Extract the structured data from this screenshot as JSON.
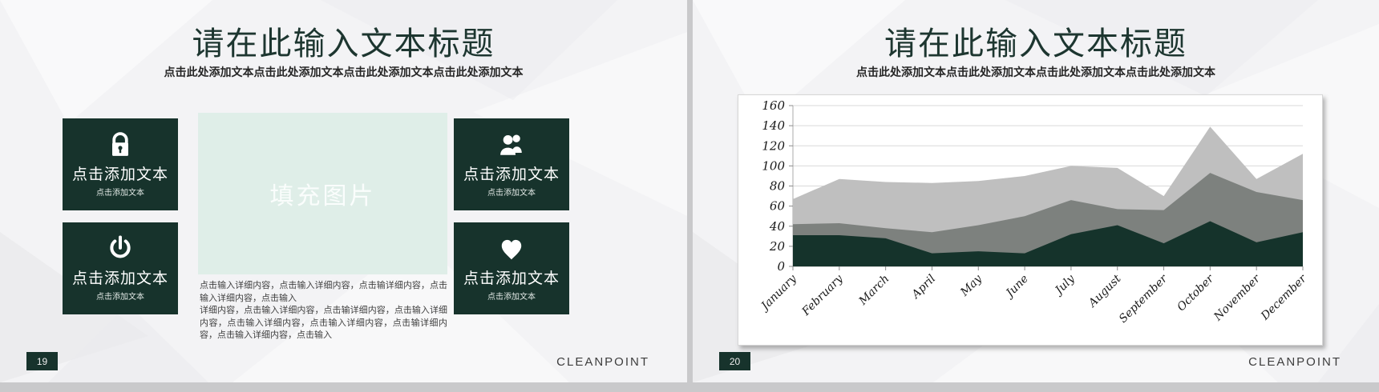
{
  "left_slide": {
    "title": "请在此输入文本标题",
    "subtitle": "点击此处添加文本点击此处添加文本点击此处添加文本点击此处添加文本",
    "boxes": [
      {
        "icon": "lock-icon",
        "label": "点击添加文本",
        "sublabel": "点击添加文本"
      },
      {
        "icon": "users-icon",
        "label": "点击添加文本",
        "sublabel": "点击添加文本"
      },
      {
        "icon": "power-icon",
        "label": "点击添加文本",
        "sublabel": "点击添加文本"
      },
      {
        "icon": "heart-icon",
        "label": "点击添加文本",
        "sublabel": "点击添加文本"
      }
    ],
    "image_placeholder": "填充图片",
    "detail_paragraphs": [
      "点击输入详细内容，点击输入详细内容，点击输详细内容，点击输入详细内容，点击输入",
      "详细内容，点击输入详细内容，点击输详细内容，点击输入详细内容，点击输入详细内容，点击输入详细内容，点击输详细内容，点击输入详细内容，点击输入"
    ],
    "page_number": "19",
    "brand": "CLEANPOINT"
  },
  "right_slide": {
    "title": "请在此输入文本标题",
    "subtitle": "点击此处添加文本点击此处添加文本点击此处添加文本点击此处添加文本",
    "page_number": "20",
    "brand": "CLEANPOINT"
  },
  "chart_data": {
    "type": "area",
    "overlapping": true,
    "title": "",
    "xlabel": "",
    "ylabel": "",
    "legend": "none",
    "grid": "horizontal",
    "categories": [
      "January",
      "February",
      "March",
      "April",
      "May",
      "June",
      "July",
      "August",
      "September",
      "October",
      "November",
      "December"
    ],
    "series": [
      {
        "name": "light-gray-series",
        "color": "#bfbfbf",
        "values": [
          67,
          87,
          84,
          83,
          85,
          90,
          100,
          98,
          70,
          139,
          87,
          112
        ]
      },
      {
        "name": "medium-gray-series",
        "color": "#7d817e",
        "values": [
          42,
          43,
          38,
          34,
          41,
          50,
          66,
          57,
          56,
          93,
          74,
          66
        ]
      },
      {
        "name": "dark-green-series",
        "color": "#15332b",
        "values": [
          31,
          31,
          28,
          13,
          15,
          13,
          32,
          41,
          23,
          45,
          24,
          34
        ]
      }
    ],
    "ylim": [
      0,
      160
    ],
    "yticks": [
      0,
      20,
      40,
      60,
      80,
      100,
      120,
      140,
      160
    ]
  },
  "colors": {
    "accent_dark_green": "#17332c",
    "mint_placeholder": "#dfeee8",
    "slide_background": "#f3f3f5",
    "frame_gray": "#c9c9cb"
  }
}
